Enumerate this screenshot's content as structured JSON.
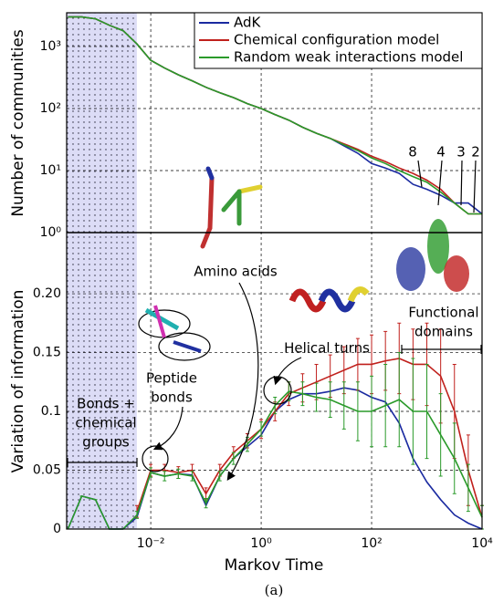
{
  "chart_data": [
    {
      "type": "line",
      "ylabel": "Number of communities",
      "log_y": true,
      "legend": "upper right",
      "xlim": [
        0.0003,
        10000
      ],
      "ylim": [
        1,
        3500
      ],
      "yticks": [
        {
          "value": 1,
          "label": "10⁰"
        },
        {
          "value": 10,
          "label": "10¹"
        },
        {
          "value": 100,
          "label": "10²"
        },
        {
          "value": 1000,
          "label": "10³"
        }
      ],
      "shaded_xlim": [
        0.0003,
        0.0056
      ],
      "step_labels": [
        "8",
        "4",
        "3",
        "2"
      ],
      "x": [
        0.000316,
        0.000562,
        0.001,
        0.00178,
        0.00316,
        0.00562,
        0.01,
        0.0178,
        0.0316,
        0.0562,
        0.1,
        0.178,
        0.316,
        0.562,
        1,
        1.78,
        3.16,
        5.62,
        10,
        17.8,
        31.6,
        56.2,
        100,
        178,
        316,
        562,
        1000,
        1780,
        3162,
        5623,
        10000
      ],
      "series": [
        {
          "name": "AdK",
          "color": "#1a2aa0",
          "values": [
            3000,
            3000,
            2800,
            2200,
            1800,
            1100,
            600,
            450,
            350,
            280,
            220,
            180,
            150,
            120,
            100,
            80,
            65,
            50,
            40,
            33,
            25,
            19,
            13,
            11,
            9,
            6,
            5,
            4,
            3,
            3,
            2
          ]
        },
        {
          "name": "Chemical configuration model",
          "color": "#c0201c",
          "values": [
            3000,
            3000,
            2800,
            2200,
            1800,
            1100,
            600,
            450,
            350,
            280,
            220,
            180,
            150,
            120,
            100,
            80,
            65,
            50,
            40,
            33,
            27,
            22,
            17,
            14,
            11,
            9,
            7,
            5,
            3,
            2,
            2
          ]
        },
        {
          "name": "Random weak interactions model",
          "color": "#2a9a2a",
          "values": [
            3000,
            3000,
            2800,
            2200,
            1800,
            1100,
            600,
            450,
            350,
            280,
            220,
            180,
            150,
            120,
            100,
            80,
            65,
            50,
            40,
            33,
            26,
            21,
            16,
            13,
            10,
            8,
            6.5,
            4.5,
            3,
            2,
            2
          ]
        }
      ]
    },
    {
      "type": "errorline",
      "xlabel": "Markov Time",
      "ylabel": "Variation of information",
      "caption": "(a)",
      "xlim": [
        0.0003,
        10000
      ],
      "ylim": [
        0,
        0.252
      ],
      "xticks": [
        {
          "value": 0.01,
          "label": "10⁻²"
        },
        {
          "value": 1,
          "label": "10⁰"
        },
        {
          "value": 100,
          "label": "10²"
        },
        {
          "value": 10000,
          "label": "10⁴"
        }
      ],
      "yticks": [
        0,
        0.05,
        0.1,
        0.15,
        {
          "value": 0.2,
          "label": "0.20"
        }
      ],
      "grid": true,
      "annotations": {
        "amino": "Amino acids",
        "helical": "Helical turns",
        "functional": [
          "Functional",
          "domains"
        ],
        "peptide": [
          "Peptide",
          "bonds"
        ],
        "bonds": [
          "Bonds +",
          "chemical",
          "groups"
        ]
      },
      "x": [
        0.000316,
        0.000562,
        0.001,
        0.00178,
        0.00316,
        0.00562,
        0.01,
        0.0178,
        0.0316,
        0.0562,
        0.1,
        0.178,
        0.316,
        0.562,
        1,
        1.78,
        3.16,
        5.62,
        10,
        17.8,
        31.6,
        56.2,
        100,
        178,
        316,
        562,
        1000,
        1780,
        3162,
        5623,
        10000
      ],
      "series": [
        {
          "color": "#1a2aa0",
          "values": [
            0,
            0.028,
            0.025,
            0,
            0,
            0.01,
            0.048,
            0.045,
            0.047,
            0.046,
            0.02,
            0.045,
            0.06,
            0.07,
            0.08,
            0.1,
            0.11,
            0.115,
            0.115,
            0.117,
            0.12,
            0.118,
            0.112,
            0.108,
            0.09,
            0.06,
            0.04,
            0.025,
            0.012,
            0.005,
            0
          ]
        },
        {
          "color": "#c0201c",
          "values": [
            null,
            null,
            null,
            null,
            null,
            0.015,
            0.05,
            0.05,
            0.048,
            0.05,
            0.03,
            0.05,
            0.065,
            0.075,
            0.085,
            0.1,
            0.115,
            0.12,
            0.125,
            0.13,
            0.135,
            0.14,
            0.14,
            0.143,
            0.145,
            0.14,
            0.14,
            0.13,
            0.1,
            0.05,
            0.01
          ],
          "errors": [
            null,
            null,
            null,
            null,
            null,
            0.005,
            0.005,
            0.005,
            0.005,
            0.005,
            0.005,
            0.005,
            0.005,
            0.006,
            0.008,
            0.008,
            0.01,
            0.012,
            0.015,
            0.018,
            0.02,
            0.022,
            0.025,
            0.025,
            0.03,
            0.03,
            0.035,
            0.04,
            0.04,
            0.03,
            0.01
          ]
        },
        {
          "color": "#2a9a2a",
          "values": [
            0,
            0.028,
            0.025,
            0,
            0,
            0.012,
            0.048,
            0.045,
            0.047,
            0.045,
            0.022,
            0.045,
            0.06,
            0.072,
            0.085,
            0.105,
            0.117,
            0.115,
            0.112,
            0.11,
            0.105,
            0.1,
            0.1,
            0.105,
            0.11,
            0.1,
            0.1,
            0.08,
            0.06,
            0.035,
            0.01
          ],
          "errors": [
            0,
            0,
            0,
            0,
            0,
            0.003,
            0.004,
            0.004,
            0.004,
            0.004,
            0.004,
            0.004,
            0.005,
            0.006,
            0.006,
            0.007,
            0.008,
            0.01,
            0.012,
            0.015,
            0.02,
            0.025,
            0.03,
            0.035,
            0.04,
            0.045,
            0.04,
            0.035,
            0.03,
            0.02,
            0.01
          ]
        }
      ]
    }
  ]
}
